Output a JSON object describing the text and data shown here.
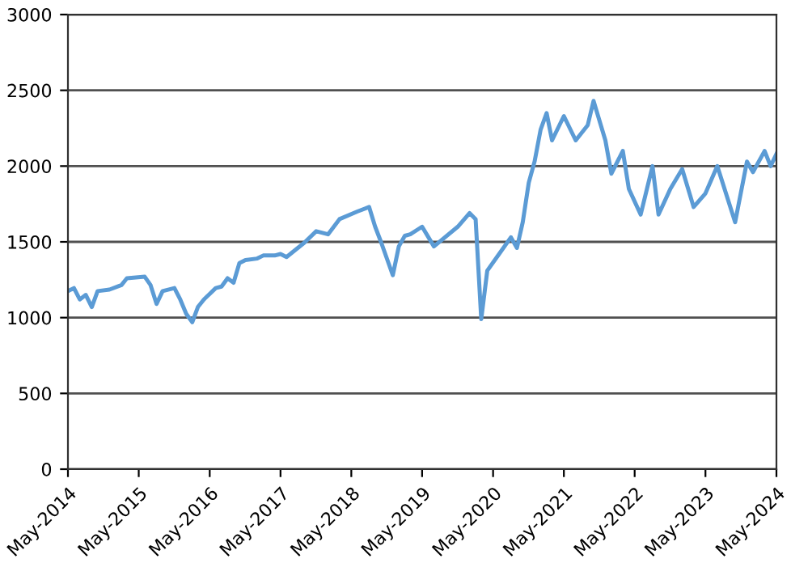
{
  "chart_data": {
    "type": "line",
    "color": "#5b9bd5",
    "grid": "y",
    "x": [
      "2014-05",
      "2014-06",
      "2014-07",
      "2014-08",
      "2014-09",
      "2014-10",
      "2014-12",
      "2015-02",
      "2015-03",
      "2015-06",
      "2015-07",
      "2015-08",
      "2015-09",
      "2015-11",
      "2015-12",
      "2016-01",
      "2016-02",
      "2016-03",
      "2016-04",
      "2016-06",
      "2016-07",
      "2016-08",
      "2016-09",
      "2016-10",
      "2016-11",
      "2017-01",
      "2017-02",
      "2017-04",
      "2017-05",
      "2017-06",
      "2017-09",
      "2017-11",
      "2018-01",
      "2018-03",
      "2018-06",
      "2018-08",
      "2018-09",
      "2018-10",
      "2018-12",
      "2019-01",
      "2019-02",
      "2019-03",
      "2019-05",
      "2019-07",
      "2019-11",
      "2020-01",
      "2020-02",
      "2020-03",
      "2020-04",
      "2020-06",
      "2020-08",
      "2020-09",
      "2020-10",
      "2020-11",
      "2020-12",
      "2021-01",
      "2021-02",
      "2021-03",
      "2021-05",
      "2021-07",
      "2021-09",
      "2021-10",
      "2021-12",
      "2022-01",
      "2022-03",
      "2022-04",
      "2022-06",
      "2022-08",
      "2022-09",
      "2022-11",
      "2023-01",
      "2023-03",
      "2023-05",
      "2023-07",
      "2023-10",
      "2023-12",
      "2024-01",
      "2024-03",
      "2024-04",
      "2024-05"
    ],
    "values": [
      1175,
      1195,
      1120,
      1150,
      1070,
      1175,
      1185,
      1215,
      1260,
      1270,
      1215,
      1090,
      1175,
      1195,
      1120,
      1025,
      970,
      1070,
      1120,
      1195,
      1205,
      1260,
      1230,
      1360,
      1380,
      1390,
      1410,
      1410,
      1420,
      1400,
      1495,
      1570,
      1550,
      1650,
      1700,
      1730,
      1600,
      1500,
      1280,
      1470,
      1540,
      1550,
      1600,
      1470,
      1600,
      1690,
      1650,
      990,
      1310,
      1420,
      1530,
      1460,
      1630,
      1890,
      2030,
      2240,
      2350,
      2170,
      2330,
      2170,
      2270,
      2430,
      2170,
      1950,
      2100,
      1850,
      1680,
      2000,
      1680,
      1850,
      1980,
      1730,
      1820,
      2000,
      1630,
      2030,
      1960,
      2100,
      2000,
      2080
    ],
    "xlim": [
      "2014-05",
      "2024-05"
    ],
    "xticks": [
      {
        "value": "2014-05",
        "label": "May-2014"
      },
      {
        "value": "2015-05",
        "label": "May-2015"
      },
      {
        "value": "2016-05",
        "label": "May-2016"
      },
      {
        "value": "2017-05",
        "label": "May-2017"
      },
      {
        "value": "2018-05",
        "label": "May-2018"
      },
      {
        "value": "2019-05",
        "label": "May-2019"
      },
      {
        "value": "2020-05",
        "label": "May-2020"
      },
      {
        "value": "2021-05",
        "label": "May-2021"
      },
      {
        "value": "2022-05",
        "label": "May-2022"
      },
      {
        "value": "2023-05",
        "label": "May-2023"
      },
      {
        "value": "2024-05",
        "label": "May-2024"
      }
    ],
    "ylim": [
      0,
      3000
    ],
    "yticks": [
      0,
      500,
      1000,
      1500,
      2000,
      2500,
      3000
    ]
  }
}
